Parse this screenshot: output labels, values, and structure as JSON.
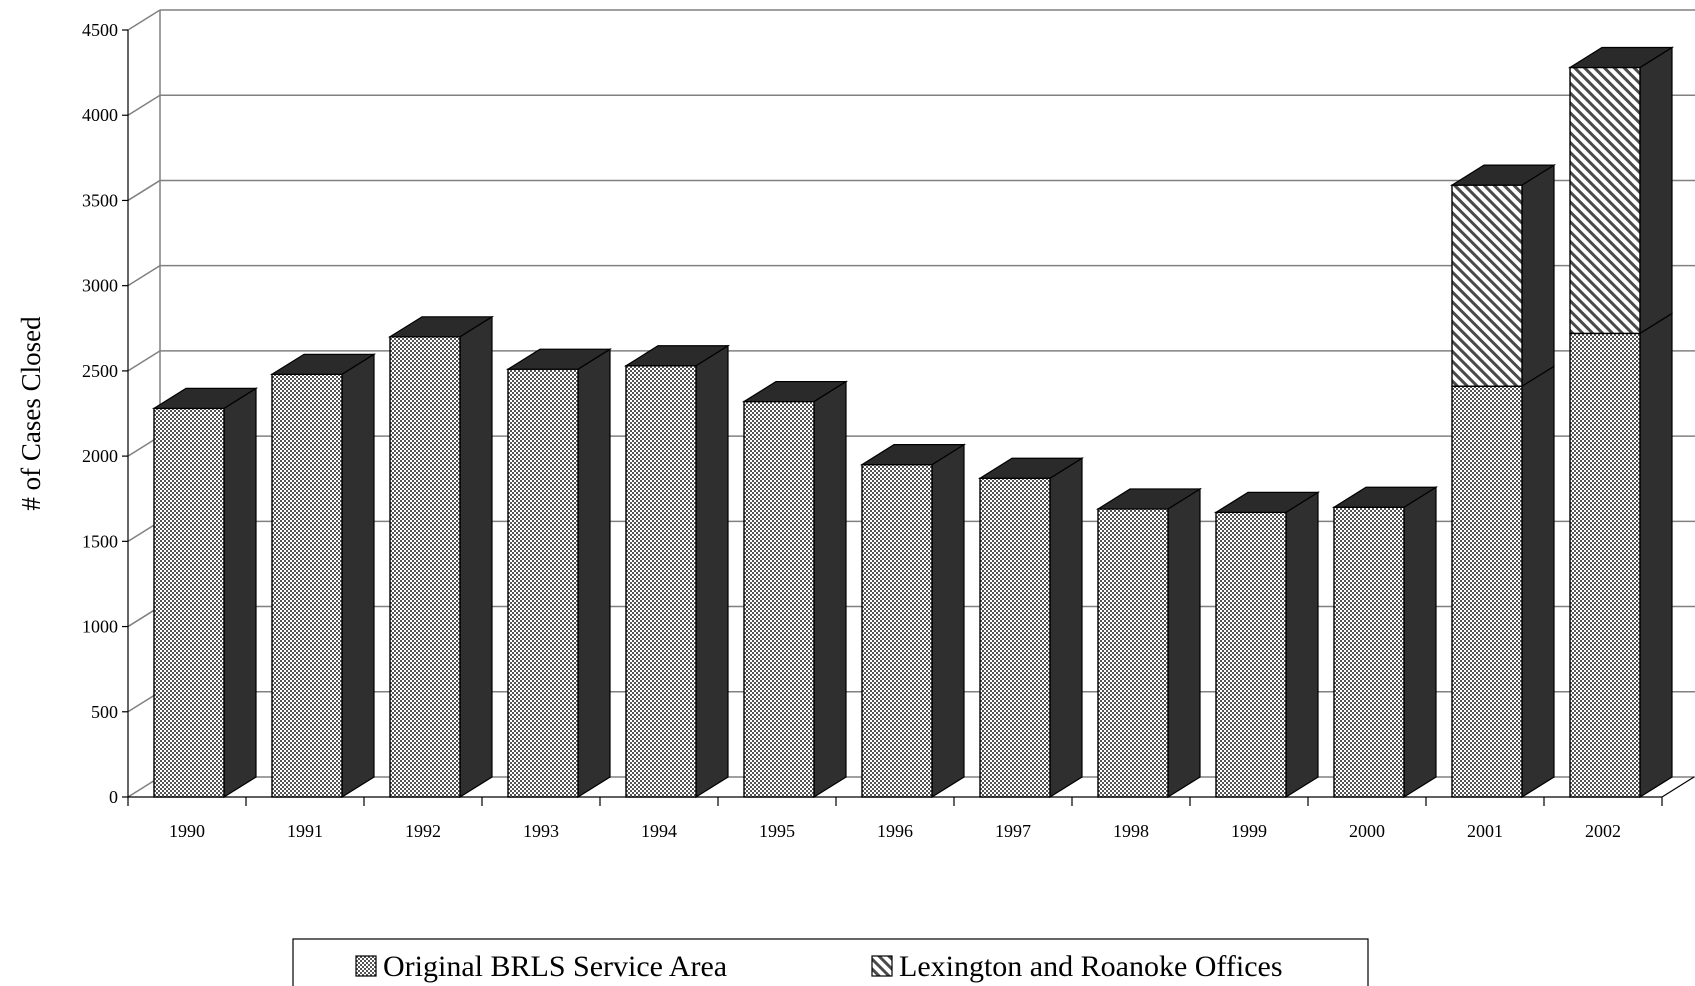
{
  "chart_data": {
    "type": "bar",
    "stacked": true,
    "three_d": true,
    "categories": [
      "1990",
      "1991",
      "1992",
      "1993",
      "1994",
      "1995",
      "1996",
      "1997",
      "1998",
      "1999",
      "2000",
      "2001",
      "2002"
    ],
    "series": [
      {
        "name": "Original BRLS Service Area",
        "pattern": "checker",
        "values": [
          2280,
          2480,
          2700,
          2510,
          2530,
          2320,
          1950,
          1870,
          1690,
          1670,
          1700,
          2410,
          2720
        ]
      },
      {
        "name": "Lexington and Roanoke Offices",
        "pattern": "diagonal-hatch",
        "values": [
          0,
          0,
          0,
          0,
          0,
          0,
          0,
          0,
          0,
          0,
          0,
          1180,
          1560
        ]
      }
    ],
    "xlabel": "",
    "ylabel": "# of Cases Closed",
    "ylim": [
      0,
      4500
    ],
    "yticks": [
      0,
      500,
      1000,
      1500,
      2000,
      2500,
      3000,
      3500,
      4000,
      4500
    ],
    "grid": true,
    "legend_position": "bottom"
  },
  "colors": {
    "side_face": "#2f2f2f",
    "top_face": "#2a2a2a",
    "front_fill": "#bdbdbd",
    "gridline": "#808080"
  }
}
